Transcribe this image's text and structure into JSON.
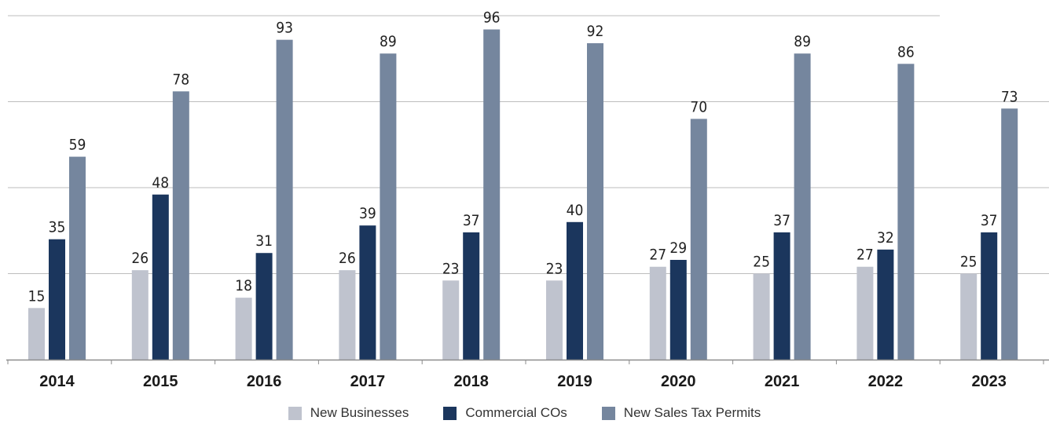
{
  "chart_data": {
    "type": "bar",
    "categories": [
      "2014",
      "2015",
      "2016",
      "2017",
      "2018",
      "2019",
      "2020",
      "2021",
      "2022",
      "2023"
    ],
    "series": [
      {
        "name": "New Businesses",
        "color": "#bfc3ce",
        "values": [
          15,
          26,
          18,
          26,
          23,
          23,
          27,
          25,
          27,
          25
        ]
      },
      {
        "name": "Commercial COs",
        "color": "#1b365d",
        "values": [
          35,
          48,
          31,
          39,
          37,
          40,
          29,
          37,
          32,
          37
        ]
      },
      {
        "name": "New Sales Tax Permits",
        "color": "#75869e",
        "values": [
          59,
          78,
          93,
          89,
          96,
          92,
          70,
          89,
          86,
          73
        ]
      }
    ],
    "title": "",
    "xlabel": "",
    "ylabel": "",
    "ylim": [
      0,
      100
    ],
    "grid": true,
    "legend": "bottom",
    "highlight_label_color": "#1b365d"
  }
}
